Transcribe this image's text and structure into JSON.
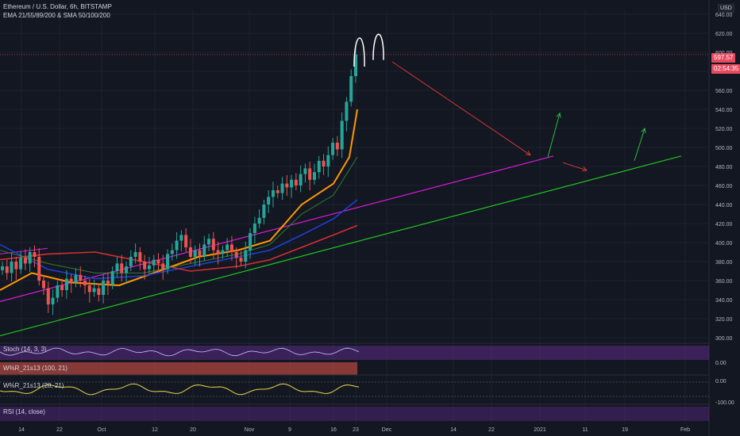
{
  "header": {
    "title": "Ethereum / U.S. Dollar, 6h, BITSTAMP",
    "indicators": "EMA 21/55/89/200 & SMA 50/100/200",
    "currency": "USD"
  },
  "price_tags": {
    "last_price": "597.57",
    "countdown": "02:54:35"
  },
  "indicator_panes": {
    "stoch": "Stoch (14, 3, 3)",
    "wr1": "W%R_21s13 (100, 21)",
    "wr2": "W%R_21s13 (28, 21)",
    "rsi": "RSI (14, close)"
  },
  "colors": {
    "background": "#131722",
    "price_up": "#26a69a",
    "price_down": "#ef5350",
    "magenta_trendline": "#d81bd8",
    "green_trendline": "#22c51e",
    "projection_red": "#e53935",
    "projection_green": "#2ecc40"
  },
  "chart_data": {
    "type": "candlestick",
    "title": "Ethereum / U.S. Dollar, 6h, BITSTAMP",
    "price_axis_ticks": [
      "640.00",
      "620.00",
      "600.00",
      "580.00",
      "560.00",
      "540.00",
      "520.00",
      "500.00",
      "480.00",
      "460.00",
      "440.00",
      "420.00",
      "400.00",
      "380.00",
      "360.00",
      "340.00",
      "320.00",
      "300.00"
    ],
    "y_range": [
      295,
      645
    ],
    "x_tick_labels": [
      "14",
      "22",
      "Oct",
      "12",
      "20",
      "Nov",
      "9",
      "16",
      "23",
      "Dec",
      "14",
      "22",
      "2021",
      "11",
      "19",
      "Feb"
    ],
    "indicator_axis_ticks": {
      "wr1": [
        "0.00"
      ],
      "wr2": [
        "0.00",
        "-100.00"
      ]
    },
    "series": [
      {
        "name": "ETHUSD price (approx. closes)",
        "values": [
          375,
          368,
          380,
          372,
          384,
          378,
          390,
          385,
          360,
          352,
          335,
          342,
          355,
          350,
          362,
          358,
          366,
          360,
          355,
          348,
          352,
          345,
          360,
          356,
          370,
          378,
          368,
          375,
          385,
          390,
          380,
          372,
          376,
          382,
          378,
          372,
          388,
          392,
          402,
          408,
          395,
          385,
          392,
          386,
          398,
          404,
          392,
          388,
          392,
          398,
          390,
          384,
          380,
          392,
          410,
          420,
          426,
          440,
          448,
          455,
          452,
          462,
          458,
          466,
          460,
          472,
          478,
          466,
          474,
          486,
          480,
          492,
          505,
          498,
          528,
          548,
          575,
          597.57
        ]
      }
    ]
  }
}
